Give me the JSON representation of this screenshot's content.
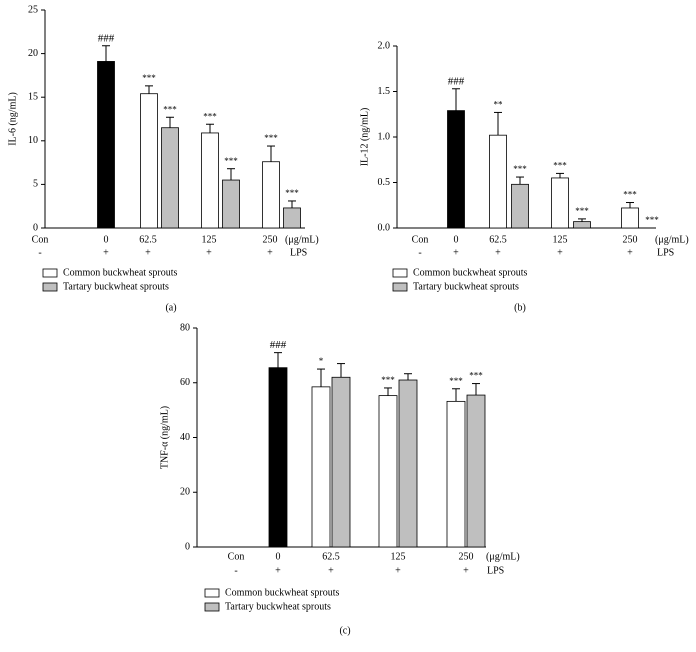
{
  "chart_data": [
    {
      "type": "bar",
      "panel": "(a)",
      "ylabel": "IL-6 (ng/mL)",
      "categories": [
        "Con",
        "0",
        "62.5",
        "125",
        "250"
      ],
      "x_unit": "(μg/mL)",
      "lps": [
        "-",
        "+",
        "+",
        "+",
        "+"
      ],
      "lps_label": "LPS",
      "ylim": [
        0,
        25
      ],
      "yticks": [
        0,
        5,
        10,
        15,
        20,
        25
      ],
      "series": [
        {
          "color": "#000000",
          "values": [
            null,
            19.1,
            null,
            null,
            null
          ],
          "errors": [
            null,
            1.8,
            null,
            null,
            null
          ],
          "significance": [
            null,
            "###",
            null,
            null,
            null
          ]
        },
        {
          "name": "Common buckwheat sprouts",
          "color": "#ffffff",
          "values": [
            null,
            null,
            15.4,
            10.9,
            7.6
          ],
          "errors": [
            null,
            null,
            0.9,
            1.0,
            1.8
          ],
          "significance": [
            null,
            null,
            "***",
            "***",
            "***"
          ]
        },
        {
          "name": "Tartary buckwheat sprouts",
          "color": "#bfbfbf",
          "values": [
            null,
            null,
            11.5,
            5.5,
            2.3
          ],
          "errors": [
            null,
            null,
            1.2,
            1.3,
            0.8
          ],
          "significance": [
            null,
            null,
            "***",
            "***",
            "***"
          ]
        }
      ]
    },
    {
      "type": "bar",
      "panel": "(b)",
      "ylabel": "IL-12 (ng/mL)",
      "categories": [
        "Con",
        "0",
        "62.5",
        "125",
        "250"
      ],
      "x_unit": "(μg/mL)",
      "lps": [
        "-",
        "+",
        "+",
        "+",
        "+"
      ],
      "lps_label": "LPS",
      "ylim": [
        0,
        2
      ],
      "yticks": [
        {
          "value": 0,
          "label": "0.0"
        },
        {
          "value": 0.5,
          "label": "0.5"
        },
        {
          "value": 1,
          "label": "1.0"
        },
        {
          "value": 1.5,
          "label": "1.5"
        },
        {
          "value": 2,
          "label": "2.0"
        }
      ],
      "series": [
        {
          "color": "#000000",
          "values": [
            null,
            1.29,
            null,
            null,
            null
          ],
          "errors": [
            null,
            0.24,
            null,
            null,
            null
          ],
          "significance": [
            null,
            "###",
            null,
            null,
            null
          ]
        },
        {
          "name": "Common buckwheat sprouts",
          "color": "#ffffff",
          "values": [
            null,
            null,
            1.02,
            0.55,
            0.22
          ],
          "errors": [
            null,
            null,
            0.25,
            0.05,
            0.06
          ],
          "significance": [
            null,
            null,
            "**",
            "***",
            "***"
          ]
        },
        {
          "name": "Tartary buckwheat sprouts",
          "color": "#bfbfbf",
          "values": [
            null,
            null,
            0.48,
            0.07,
            0
          ],
          "errors": [
            null,
            null,
            0.08,
            0.03,
            0
          ],
          "significance": [
            null,
            null,
            "***",
            "***",
            "***"
          ]
        }
      ]
    },
    {
      "type": "bar",
      "panel": "(c)",
      "ylabel": "TNF-α (ng/mL)",
      "categories": [
        "Con",
        "0",
        "62.5",
        "125",
        "250"
      ],
      "x_unit": "(μg/mL)",
      "lps": [
        "-",
        "+",
        "+",
        "+",
        "+"
      ],
      "lps_label": "LPS",
      "ylim": [
        0,
        80
      ],
      "yticks": [
        0,
        20,
        40,
        60,
        80
      ],
      "series": [
        {
          "color": "#000000",
          "values": [
            null,
            65.5,
            null,
            null,
            null
          ],
          "errors": [
            null,
            5.5,
            null,
            null,
            null
          ],
          "significance": [
            null,
            "###",
            null,
            null,
            null
          ]
        },
        {
          "name": "Common buckwheat sprouts",
          "color": "#ffffff",
          "values": [
            null,
            null,
            58.5,
            55.3,
            53.2
          ],
          "errors": [
            null,
            null,
            6.5,
            2.8,
            4.6
          ],
          "significance": [
            null,
            null,
            "*",
            "***",
            "***"
          ]
        },
        {
          "name": "Tartary buckwheat sprouts",
          "color": "#bfbfbf",
          "values": [
            null,
            null,
            62.0,
            61.0,
            55.5
          ],
          "errors": [
            null,
            null,
            5.0,
            2.3,
            4.2
          ],
          "significance": [
            null,
            null,
            null,
            null,
            "***"
          ]
        }
      ]
    }
  ]
}
